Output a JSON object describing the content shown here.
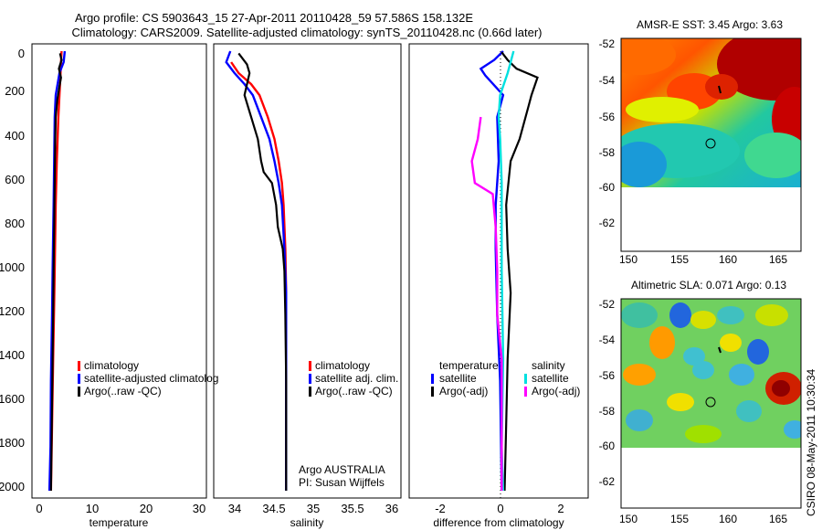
{
  "header": {
    "line1": "Argo profile: CS 5903643_15 27-Apr-2011 20110428_59 57.586S 158.132E",
    "line2": "Climatology: CARS2009. Satellite-adjusted climatology: synTS_20110428.nc (0.66d later)"
  },
  "depth_ticks": [
    "0",
    "200",
    "400",
    "600",
    "800",
    "1000",
    "1200",
    "1400",
    "1600",
    "1800",
    "2000"
  ],
  "colors": {
    "climatology": "#ff0000",
    "satellite": "#0000ff",
    "argo": "#000000",
    "sal_satellite": "#00e0e0",
    "sal_argo": "#ff00ff"
  },
  "chart_data": [
    {
      "type": "line",
      "xlabel": "temperature",
      "x_ticks": [
        "0",
        "10",
        "20",
        "30"
      ],
      "xlim": [
        -2,
        31
      ],
      "ylim": [
        0,
        2050
      ],
      "y_reversed": true,
      "legend": [
        "climatology",
        "satellite-adjusted climatolog",
        "Argo(..raw -QC)"
      ],
      "series": [
        {
          "name": "climatology",
          "color": "#ff0000",
          "points": [
            [
              3.6,
              0
            ],
            [
              3.5,
              50
            ],
            [
              3.4,
              100
            ],
            [
              3.2,
              200
            ],
            [
              3.0,
              300
            ],
            [
              2.7,
              500
            ],
            [
              2.5,
              700
            ],
            [
              2.3,
              1000
            ],
            [
              2.2,
              1150
            ],
            [
              2.0,
              1400
            ],
            [
              1.8,
              1700
            ],
            [
              1.6,
              2000
            ]
          ]
        },
        {
          "name": "satellite-adjusted climatolog",
          "color": "#0000ff",
          "points": [
            [
              4.2,
              0
            ],
            [
              4.0,
              50
            ],
            [
              3.2,
              100
            ],
            [
              2.5,
              200
            ],
            [
              2.3,
              300
            ],
            [
              2.2,
              500
            ],
            [
              2.1,
              700
            ],
            [
              1.9,
              1000
            ],
            [
              1.8,
              1200
            ],
            [
              1.6,
              1500
            ],
            [
              1.5,
              1800
            ],
            [
              1.3,
              2000
            ]
          ]
        },
        {
          "name": "Argo(..raw -QC)",
          "color": "#000000",
          "points": [
            [
              3.3,
              10
            ],
            [
              3.6,
              40
            ],
            [
              3.1,
              80
            ],
            [
              3.5,
              120
            ],
            [
              3.2,
              160
            ],
            [
              2.8,
              220
            ],
            [
              2.5,
              300
            ],
            [
              2.4,
              400
            ],
            [
              2.3,
              600
            ],
            [
              2.2,
              800
            ],
            [
              2.1,
              1000
            ],
            [
              2.0,
              1200
            ],
            [
              1.9,
              1400
            ],
            [
              1.8,
              1600
            ],
            [
              1.7,
              1800
            ],
            [
              1.6,
              2000
            ]
          ]
        }
      ]
    },
    {
      "type": "line",
      "xlabel": "salinity",
      "x_ticks": [
        "34",
        "34.5",
        "35",
        "35.5",
        "36"
      ],
      "xlim": [
        33.85,
        36.1
      ],
      "ylim": [
        0,
        2050
      ],
      "y_reversed": true,
      "legend": [
        "climatology",
        "satellite adj. clim.",
        "Argo(..raw -QC)"
      ],
      "annotations": [
        "Argo AUSTRALIA",
        "PI: Susan Wijffels"
      ],
      "series": [
        {
          "name": "climatology",
          "color": "#ff0000",
          "points": [
            [
              34.06,
              50
            ],
            [
              34.15,
              100
            ],
            [
              34.3,
              150
            ],
            [
              34.4,
              200
            ],
            [
              34.5,
              300
            ],
            [
              34.58,
              400
            ],
            [
              34.63,
              500
            ],
            [
              34.67,
              600
            ],
            [
              34.69,
              700
            ],
            [
              34.71,
              900
            ],
            [
              34.72,
              1100
            ],
            [
              34.72,
              1500
            ],
            [
              34.72,
              2000
            ]
          ]
        },
        {
          "name": "satellite adj. clim.",
          "color": "#0000ff",
          "points": [
            [
              34.05,
              0
            ],
            [
              34.0,
              50
            ],
            [
              34.1,
              100
            ],
            [
              34.22,
              150
            ],
            [
              34.32,
              200
            ],
            [
              34.42,
              300
            ],
            [
              34.52,
              400
            ],
            [
              34.58,
              500
            ],
            [
              34.63,
              600
            ],
            [
              34.67,
              700
            ],
            [
              34.7,
              900
            ],
            [
              34.72,
              1100
            ],
            [
              34.72,
              1500
            ],
            [
              34.72,
              2000
            ]
          ]
        },
        {
          "name": "Argo(..raw -QC)",
          "color": "#000000",
          "points": [
            [
              34.15,
              10
            ],
            [
              34.25,
              60
            ],
            [
              34.28,
              100
            ],
            [
              34.22,
              200
            ],
            [
              34.3,
              300
            ],
            [
              34.38,
              400
            ],
            [
              34.42,
              500
            ],
            [
              34.45,
              550
            ],
            [
              34.55,
              600
            ],
            [
              34.6,
              700
            ],
            [
              34.62,
              800
            ],
            [
              34.68,
              900
            ],
            [
              34.7,
              1000
            ],
            [
              34.71,
              1200
            ],
            [
              34.72,
              1500
            ],
            [
              34.72,
              2000
            ]
          ]
        }
      ]
    },
    {
      "type": "line",
      "xlabel": "difference from climatology",
      "x_ticks": [
        "-2",
        "0",
        "2"
      ],
      "xlim": [
        -3.1,
        2.9
      ],
      "ylim": [
        0,
        2050
      ],
      "y_reversed": true,
      "legend_groups": [
        {
          "title": "temperature",
          "items": [
            "satellite",
            "Argo(-adj)"
          ]
        },
        {
          "title": "salinity",
          "items": [
            "satellite",
            "Argo(-adj)"
          ]
        }
      ],
      "series": [
        {
          "name": "temperature satellite",
          "color": "#0000ff",
          "points": [
            [
              0.05,
              0
            ],
            [
              -0.25,
              40
            ],
            [
              -0.7,
              80
            ],
            [
              -0.55,
              110
            ],
            [
              0.05,
              200
            ],
            [
              -0.15,
              300
            ],
            [
              -0.1,
              500
            ],
            [
              -0.2,
              700
            ],
            [
              -0.2,
              900
            ],
            [
              -0.15,
              1200
            ],
            [
              -0.05,
              1500
            ],
            [
              0.0,
              2000
            ]
          ]
        },
        {
          "name": "temperature Argo(-adj)",
          "color": "#000000",
          "points": [
            [
              0.0,
              5
            ],
            [
              0.2,
              40
            ],
            [
              0.5,
              80
            ],
            [
              1.2,
              120
            ],
            [
              1.0,
              200
            ],
            [
              0.9,
              250
            ],
            [
              0.6,
              400
            ],
            [
              0.3,
              500
            ],
            [
              0.15,
              700
            ],
            [
              0.2,
              900
            ],
            [
              0.3,
              1100
            ],
            [
              0.2,
              1400
            ],
            [
              0.15,
              1700
            ],
            [
              0.1,
              2000
            ]
          ]
        },
        {
          "name": "salinity satellite",
          "color": "#00e0e0",
          "points": [
            [
              0.4,
              0
            ],
            [
              0.3,
              50
            ],
            [
              0.2,
              100
            ],
            [
              -0.05,
              200
            ],
            [
              -0.1,
              300
            ],
            [
              -0.05,
              400
            ],
            [
              0.0,
              600
            ],
            [
              0.0,
              1000
            ],
            [
              0.05,
              1400
            ],
            [
              0.0,
              1800
            ],
            [
              0.05,
              2000
            ]
          ]
        },
        {
          "name": "salinity Argo(-adj)",
          "color": "#ff00ff",
          "points": [
            [
              -0.7,
              300
            ],
            [
              -0.8,
              400
            ],
            [
              -1.0,
              500
            ],
            [
              -0.9,
              600
            ],
            [
              -0.3,
              650
            ],
            [
              -0.2,
              800
            ],
            [
              -0.15,
              1000
            ],
            [
              -0.15,
              1200
            ],
            [
              0.0,
              1400
            ],
            [
              0.0,
              2000
            ]
          ]
        }
      ]
    },
    {
      "type": "heatmap",
      "title": "AMSR-E SST: 3.45 Argo: 3.63",
      "x_ticks": [
        "150",
        "155",
        "160",
        "165"
      ],
      "y_ticks": [
        "-52",
        "-54",
        "-56",
        "-58",
        "-60",
        "-62"
      ],
      "xlim": [
        148.5,
        168
      ],
      "ylim": [
        -51.5,
        -63.6
      ],
      "data_extent_lat": [
        -51.5,
        -60.1
      ],
      "profile_location": [
        158.132,
        -57.586
      ]
    },
    {
      "type": "heatmap",
      "title": "Altimetric SLA: 0.071 Argo: 0.13",
      "x_ticks": [
        "150",
        "155",
        "160",
        "165"
      ],
      "y_ticks": [
        "-52",
        "-54",
        "-56",
        "-58",
        "-60",
        "-62"
      ],
      "xlim": [
        148.5,
        168
      ],
      "ylim": [
        -51.5,
        -63.6
      ],
      "data_extent_lat": [
        -51.5,
        -60.1
      ],
      "profile_location": [
        158.132,
        -57.586
      ]
    }
  ],
  "footer": {
    "stamp": "CSIRO 08-May-2011 10:30:34"
  }
}
